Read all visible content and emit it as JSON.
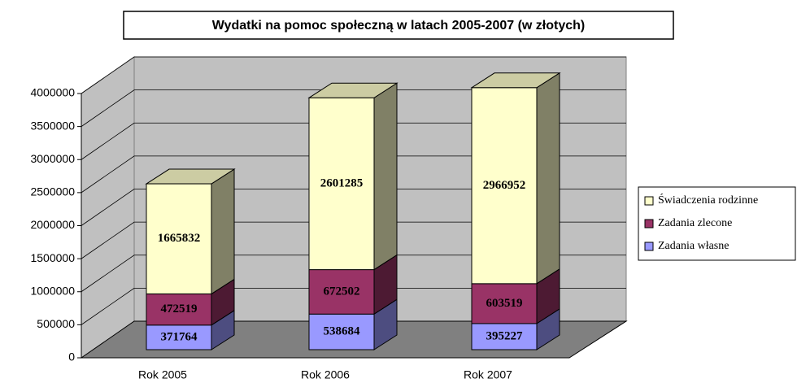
{
  "chart_data": {
    "type": "bar3d_stacked",
    "title": "Wydatki na pomoc społeczną w latach 2005-2007 (w złotych)",
    "categories": [
      "Rok 2005",
      "Rok 2006",
      "Rok 2007"
    ],
    "series": [
      {
        "name": "Zadania własne",
        "color": "#9999ff",
        "values": [
          371764,
          538684,
          395227
        ]
      },
      {
        "name": "Zadania zlecone",
        "color": "#993366",
        "values": [
          472519,
          672502,
          603519
        ]
      },
      {
        "name": "Świadczenia rodzinne",
        "color": "#ffffcc",
        "values": [
          1665832,
          2601285,
          2966952
        ]
      }
    ],
    "ylim": [
      0,
      4000000
    ],
    "yticks": [
      0,
      500000,
      1000000,
      1500000,
      2000000,
      2500000,
      3000000,
      3500000,
      4000000
    ],
    "grid": true,
    "legend": "right"
  }
}
